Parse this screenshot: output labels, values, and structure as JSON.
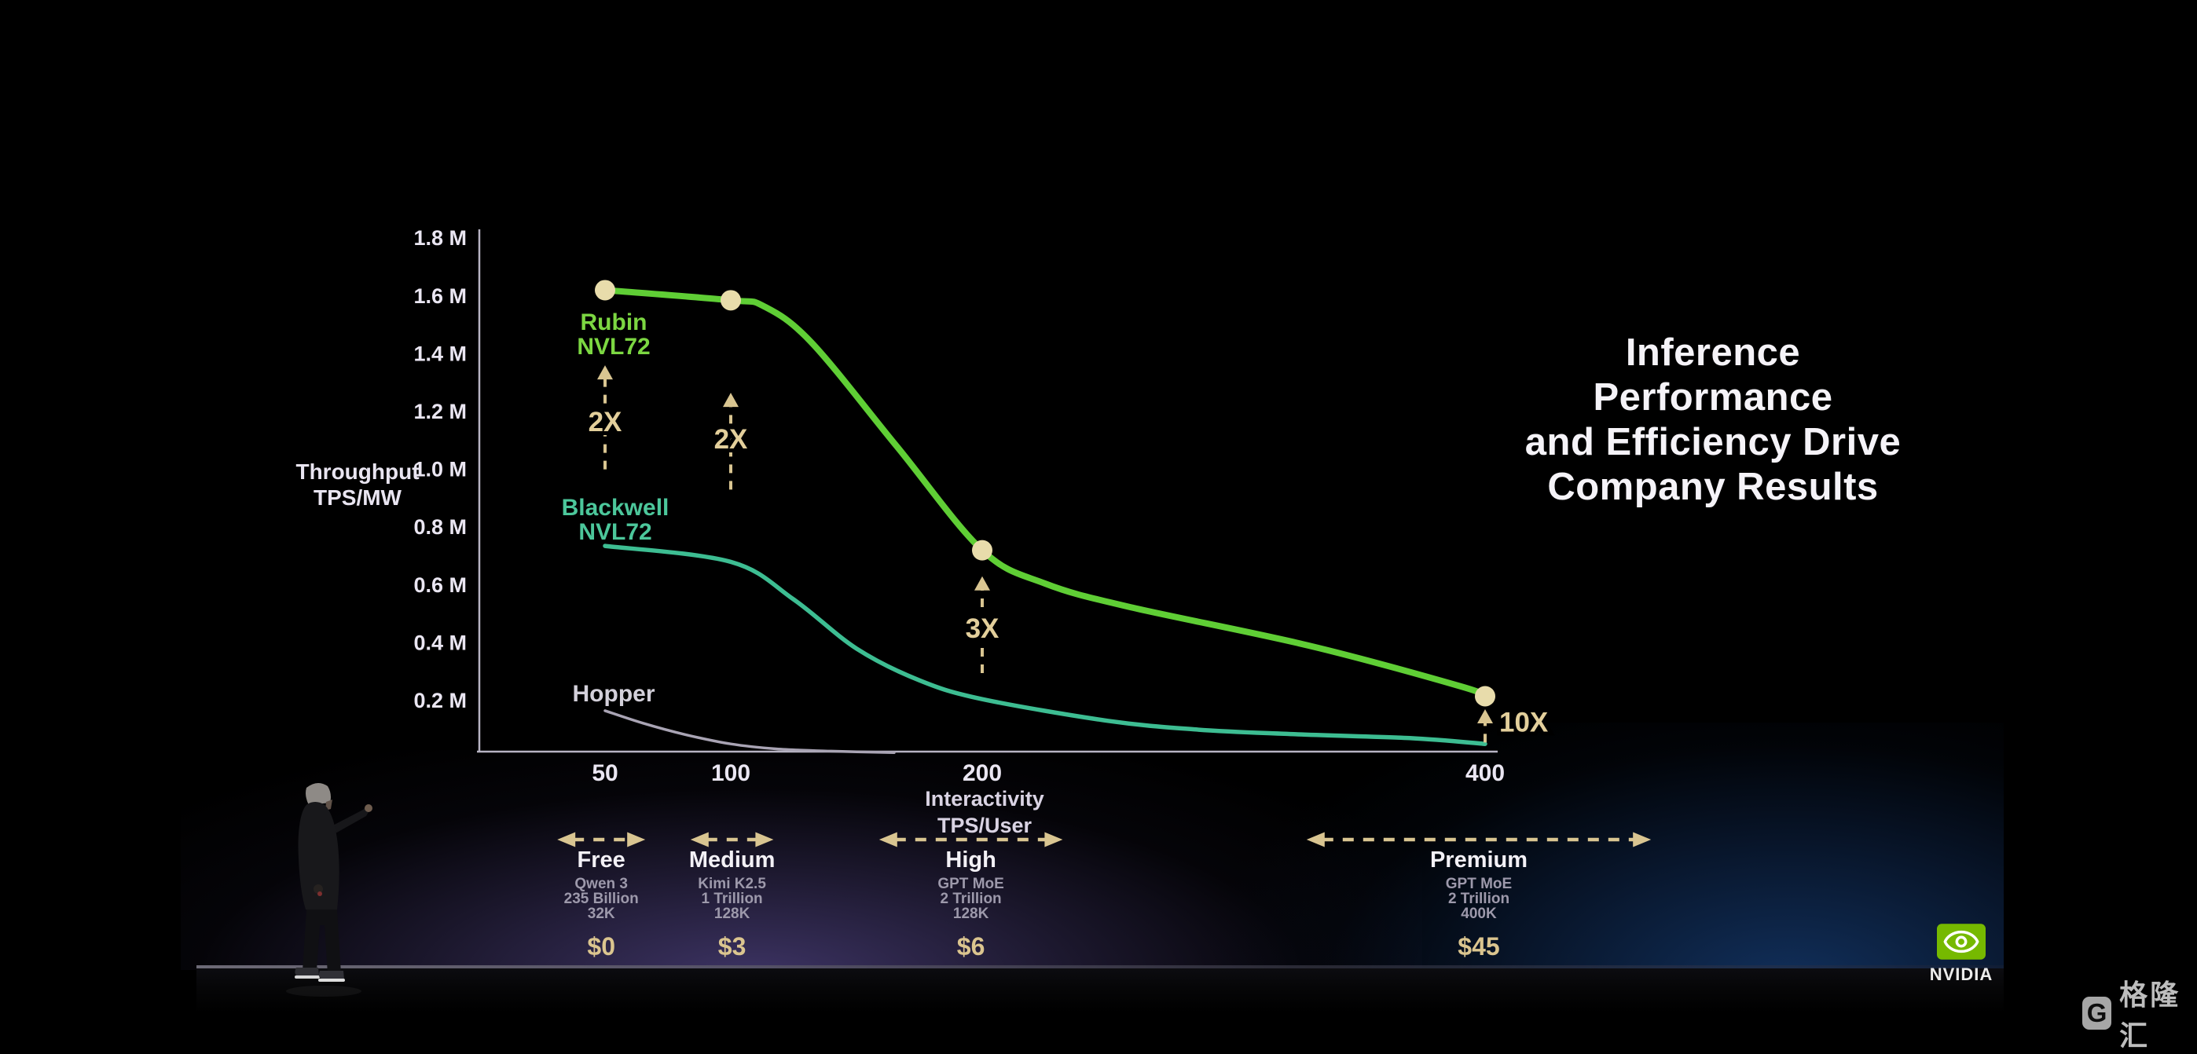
{
  "slide": {
    "title_lines": [
      "Inference Performance",
      "and Efficiency Drive",
      "Company Results"
    ]
  },
  "chart_data": {
    "type": "line",
    "title": "Inference Performance and Efficiency Drive Company Results",
    "x_axis": {
      "label_lines": [
        "Interactivity",
        "TPS/User"
      ],
      "range": [
        0,
        405
      ],
      "ticks": [
        {
          "v": 50,
          "label": "50"
        },
        {
          "v": 100,
          "label": "100"
        },
        {
          "v": 200,
          "label": "200"
        },
        {
          "v": 400,
          "label": "400"
        }
      ]
    },
    "y_axis": {
      "label_lines": [
        "Throughput",
        "TPS/MW"
      ],
      "unit": "M TPS/MW",
      "range": [
        0,
        1.85
      ],
      "ticks": [
        {
          "v": 1.8,
          "label": "1.8 M"
        },
        {
          "v": 1.6,
          "label": "1.6 M"
        },
        {
          "v": 1.4,
          "label": "1.4 M"
        },
        {
          "v": 1.2,
          "label": "1.2 M"
        },
        {
          "v": 1.0,
          "label": "1.0 M"
        },
        {
          "v": 0.8,
          "label": "0.8 M"
        },
        {
          "v": 0.6,
          "label": "0.6 M"
        },
        {
          "v": 0.4,
          "label": "0.4 M"
        },
        {
          "v": 0.2,
          "label": "0.2 M"
        }
      ]
    },
    "marker_color": "#e8dcab",
    "annotation_color": "#d9c591",
    "series": [
      {
        "id": "hopper",
        "name": "Hopper",
        "label_lines": [
          "Hopper"
        ],
        "color": "#a9a4b4",
        "label_color": "#d3d0da",
        "width": 3.5,
        "points": [
          [
            50,
            0.165
          ],
          [
            65,
            0.122
          ],
          [
            82,
            0.082
          ],
          [
            100,
            0.05
          ],
          [
            118,
            0.033
          ],
          [
            140,
            0.025
          ],
          [
            165,
            0.02
          ]
        ]
      },
      {
        "id": "blackwell",
        "name": "Blackwell NVL72",
        "label_lines": [
          "Blackwell",
          "NVL72"
        ],
        "color": "#3dbd92",
        "label_color": "#4cc79b",
        "width": 5.5,
        "points": [
          [
            50,
            0.735
          ],
          [
            100,
            0.68
          ],
          [
            125,
            0.55
          ],
          [
            150,
            0.38
          ],
          [
            175,
            0.27
          ],
          [
            200,
            0.205
          ],
          [
            250,
            0.13
          ],
          [
            285,
            0.1
          ],
          [
            320,
            0.085
          ],
          [
            370,
            0.07
          ],
          [
            400,
            0.05
          ]
        ]
      },
      {
        "id": "rubin",
        "name": "Rubin NVL72",
        "label_lines": [
          "Rubin",
          "NVL72"
        ],
        "color": "#5fce35",
        "label_color": "#7cd742",
        "width": 8,
        "points": [
          [
            50,
            1.62
          ],
          [
            100,
            1.585
          ],
          [
            113,
            1.565
          ],
          [
            132,
            1.44
          ],
          [
            166,
            1.08
          ],
          [
            200,
            0.72
          ],
          [
            225,
            0.605
          ],
          [
            258,
            0.525
          ],
          [
            330,
            0.39
          ],
          [
            390,
            0.25
          ],
          [
            400,
            0.215
          ]
        ],
        "markers": [
          [
            50,
            1.62
          ],
          [
            100,
            1.585
          ],
          [
            200,
            0.72
          ],
          [
            400,
            0.215
          ]
        ]
      }
    ],
    "annotations": [
      {
        "label": "2X",
        "x": 50,
        "arrow_top": 1.36,
        "arrow_bottom": 1.0,
        "label_y": 1.165,
        "placement": "on-line"
      },
      {
        "label": "2X",
        "x": 100,
        "arrow_top": 1.265,
        "arrow_bottom": 0.93,
        "label_y": 1.105,
        "placement": "on-line"
      },
      {
        "label": "3X",
        "x": 200,
        "arrow_top": 0.63,
        "arrow_bottom": 0.295,
        "label_y": 0.45,
        "placement": "on-line"
      },
      {
        "label": "10X",
        "x": 400,
        "arrow_top": 0.17,
        "arrow_bottom": 0.055,
        "label_y": 0.125,
        "placement": "right"
      }
    ]
  },
  "pricing_tiers": [
    {
      "name": "Free",
      "model": "Qwen 3",
      "params": "235 Billion",
      "context": "32K",
      "price": "$0",
      "tps_range": [
        31,
        66
      ]
    },
    {
      "name": "Medium",
      "model": "Kimi K2.5",
      "params": "1 Trillion",
      "context": "128K",
      "price": "$3",
      "tps_range": [
        84,
        117
      ]
    },
    {
      "name": "High",
      "model": "GPT MoE",
      "params": "2 Trillion",
      "context": "128K",
      "price": "$6",
      "tps_range": [
        159,
        232
      ]
    },
    {
      "name": "Premium",
      "model": "GPT MoE",
      "params": "2 Trillion",
      "context": "400K",
      "price": "$45",
      "tps_range": [
        329,
        466
      ]
    }
  ],
  "branding": {
    "nvidia_label": "NVIDIA"
  },
  "watermark": {
    "badge": "G",
    "text": "格隆汇"
  }
}
